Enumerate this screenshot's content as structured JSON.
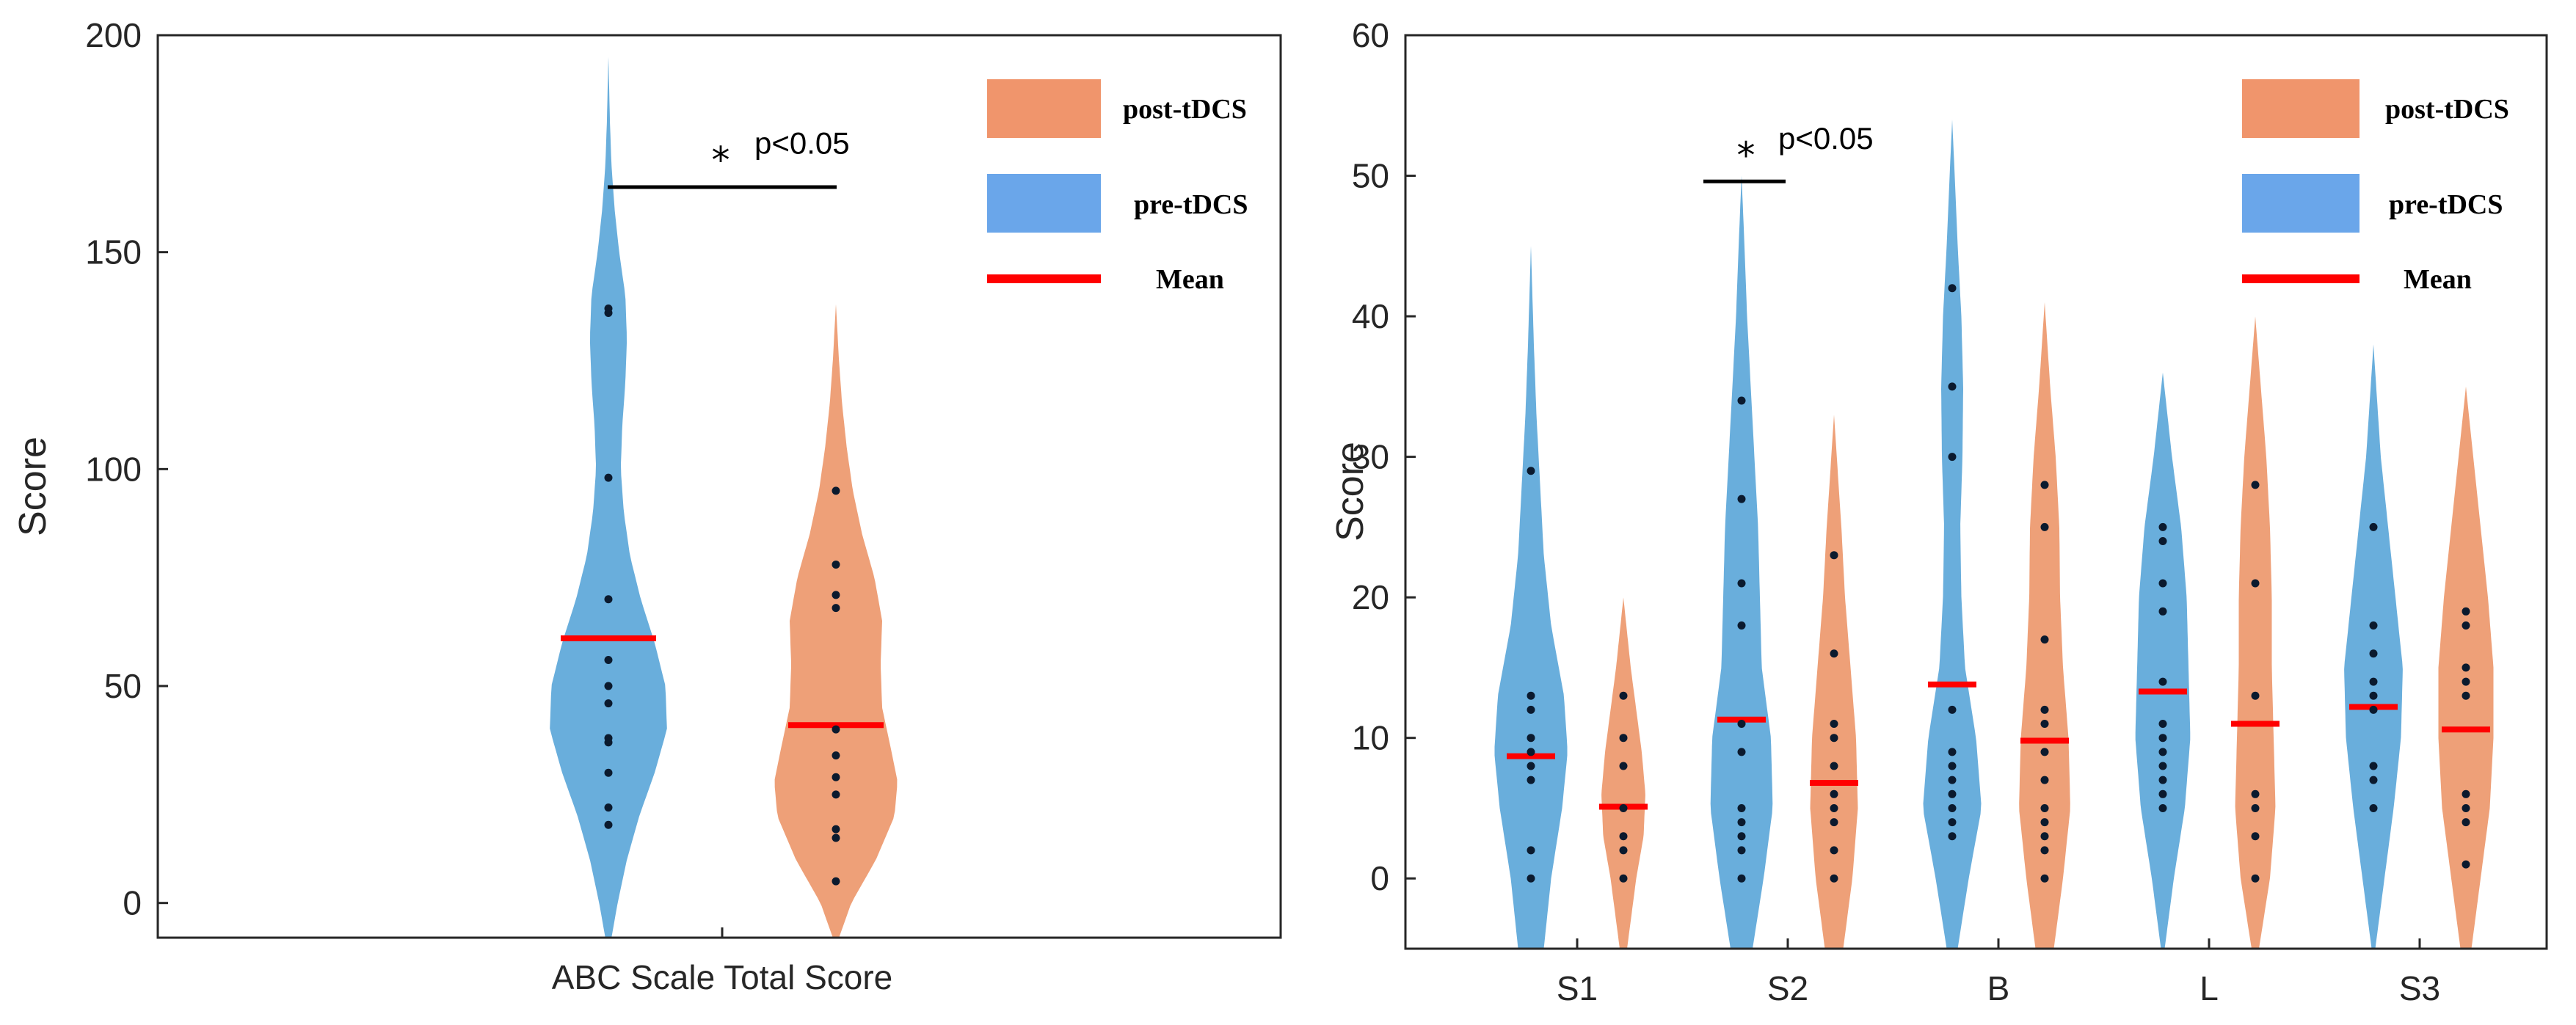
{
  "colors": {
    "pre": "#69aedc",
    "post": "#eea078",
    "pre_legend": "#6aa6ea",
    "post_legend": "#f0956c",
    "mean": "#ff0000",
    "dots": "#0b1a2e",
    "axis": "#262626"
  },
  "legend": {
    "post_label": "post-tDCS",
    "pre_label": "pre-tDCS",
    "mean_label": "Mean"
  },
  "chart_data": [
    {
      "type": "violin",
      "title": "",
      "xlabel": "",
      "ylabel": "Score",
      "ylim": [
        -8,
        200
      ],
      "yticks": [
        0,
        50,
        100,
        150,
        200
      ],
      "categories": [
        "ABC Scale Total Score"
      ],
      "annotation": {
        "text": "p<0.05",
        "star": "*",
        "bar_y": 165,
        "star_y": 173
      },
      "groups": [
        {
          "category": "ABC Scale Total Score",
          "series": "pre-tDCS",
          "mean": 61,
          "points": [
            18,
            22,
            30,
            37,
            38,
            46,
            50,
            56,
            70,
            98,
            136,
            137
          ],
          "profile": [
            [
              -8,
              0.02
            ],
            [
              0,
              0.06
            ],
            [
              10,
              0.12
            ],
            [
              20,
              0.2
            ],
            [
              30,
              0.3
            ],
            [
              40,
              0.38
            ],
            [
              50,
              0.37
            ],
            [
              60,
              0.3
            ],
            [
              70,
              0.21
            ],
            [
              80,
              0.14
            ],
            [
              90,
              0.1
            ],
            [
              100,
              0.08
            ],
            [
              110,
              0.09
            ],
            [
              120,
              0.11
            ],
            [
              130,
              0.12
            ],
            [
              140,
              0.11
            ],
            [
              150,
              0.07
            ],
            [
              160,
              0.04
            ],
            [
              170,
              0.02
            ],
            [
              180,
              0.01
            ],
            [
              195,
              0
            ]
          ]
        },
        {
          "category": "ABC Scale Total Score",
          "series": "post-tDCS",
          "mean": 41,
          "points": [
            5,
            15,
            17,
            25,
            29,
            34,
            40,
            68,
            71,
            78,
            95
          ],
          "profile": [
            [
              -8,
              0.02
            ],
            [
              0,
              0.1
            ],
            [
              10,
              0.26
            ],
            [
              20,
              0.38
            ],
            [
              28,
              0.4
            ],
            [
              35,
              0.36
            ],
            [
              45,
              0.3
            ],
            [
              55,
              0.29
            ],
            [
              65,
              0.3
            ],
            [
              75,
              0.25
            ],
            [
              85,
              0.17
            ],
            [
              95,
              0.11
            ],
            [
              105,
              0.07
            ],
            [
              115,
              0.04
            ],
            [
              125,
              0.02
            ],
            [
              138,
              0
            ]
          ]
        }
      ]
    },
    {
      "type": "violin",
      "title": "",
      "xlabel": "",
      "ylabel": "Score",
      "ylim": [
        -5,
        60
      ],
      "yticks": [
        0,
        10,
        20,
        30,
        40,
        50,
        60
      ],
      "categories": [
        "S1",
        "S2",
        "B",
        "L",
        "S3"
      ],
      "annotation": {
        "text": "p<0.05",
        "star": "*",
        "bar_y": 49.6,
        "star_y": 52
      },
      "groups": [
        {
          "category": "S1",
          "series": "pre-tDCS",
          "mean": 8.7,
          "points": [
            0,
            2,
            7,
            8,
            9,
            10,
            12,
            13,
            29
          ],
          "profile": [
            [
              -5,
              0.35
            ],
            [
              0,
              0.55
            ],
            [
              5,
              0.85
            ],
            [
              9,
              1.0
            ],
            [
              13,
              0.9
            ],
            [
              18,
              0.55
            ],
            [
              23,
              0.35
            ],
            [
              28,
              0.25
            ],
            [
              33,
              0.15
            ],
            [
              38,
              0.08
            ],
            [
              45,
              0
            ]
          ]
        },
        {
          "category": "S1",
          "series": "post-tDCS",
          "mean": 5.1,
          "points": [
            0,
            2,
            3,
            5,
            8,
            10,
            13
          ],
          "profile": [
            [
              -5,
              0.1
            ],
            [
              0,
              0.35
            ],
            [
              3,
              0.55
            ],
            [
              6,
              0.6
            ],
            [
              9,
              0.5
            ],
            [
              12,
              0.35
            ],
            [
              15,
              0.2
            ],
            [
              20,
              0
            ]
          ]
        },
        {
          "category": "S2",
          "series": "pre-tDCS",
          "mean": 11.3,
          "points": [
            0,
            2,
            3,
            4,
            5,
            9,
            11,
            18,
            21,
            27,
            34
          ],
          "profile": [
            [
              -5,
              0.3
            ],
            [
              0,
              0.6
            ],
            [
              5,
              0.85
            ],
            [
              10,
              0.8
            ],
            [
              15,
              0.55
            ],
            [
              20,
              0.5
            ],
            [
              25,
              0.45
            ],
            [
              30,
              0.35
            ],
            [
              35,
              0.25
            ],
            [
              40,
              0.15
            ],
            [
              45,
              0.08
            ],
            [
              50,
              0
            ]
          ]
        },
        {
          "category": "S2",
          "series": "post-tDCS",
          "mean": 6.8,
          "points": [
            0,
            2,
            4,
            5,
            6,
            8,
            10,
            11,
            16,
            23
          ],
          "profile": [
            [
              -5,
              0.25
            ],
            [
              0,
              0.5
            ],
            [
              5,
              0.65
            ],
            [
              10,
              0.6
            ],
            [
              15,
              0.45
            ],
            [
              20,
              0.3
            ],
            [
              25,
              0.2
            ],
            [
              33,
              0
            ]
          ]
        },
        {
          "category": "B",
          "series": "pre-tDCS",
          "mean": 13.8,
          "points": [
            3,
            4,
            5,
            6,
            7,
            8,
            9,
            12,
            30,
            35,
            42
          ],
          "profile": [
            [
              -5,
              0.15
            ],
            [
              0,
              0.45
            ],
            [
              5,
              0.8
            ],
            [
              10,
              0.65
            ],
            [
              15,
              0.35
            ],
            [
              20,
              0.25
            ],
            [
              25,
              0.22
            ],
            [
              30,
              0.28
            ],
            [
              35,
              0.3
            ],
            [
              40,
              0.25
            ],
            [
              45,
              0.15
            ],
            [
              50,
              0.07
            ],
            [
              54,
              0
            ]
          ]
        },
        {
          "category": "B",
          "series": "post-tDCS",
          "mean": 9.8,
          "points": [
            0,
            2,
            3,
            4,
            5,
            7,
            9,
            11,
            12,
            17,
            25,
            28
          ],
          "profile": [
            [
              -5,
              0.25
            ],
            [
              0,
              0.5
            ],
            [
              5,
              0.7
            ],
            [
              10,
              0.65
            ],
            [
              15,
              0.5
            ],
            [
              20,
              0.42
            ],
            [
              25,
              0.4
            ],
            [
              30,
              0.3
            ],
            [
              35,
              0.15
            ],
            [
              41,
              0
            ]
          ]
        },
        {
          "category": "L",
          "series": "pre-tDCS",
          "mean": 13.3,
          "points": [
            5,
            6,
            7,
            8,
            9,
            10,
            11,
            14,
            19,
            21,
            24,
            25
          ],
          "profile": [
            [
              -5,
              0.05
            ],
            [
              0,
              0.3
            ],
            [
              5,
              0.6
            ],
            [
              10,
              0.75
            ],
            [
              15,
              0.7
            ],
            [
              20,
              0.65
            ],
            [
              25,
              0.5
            ],
            [
              30,
              0.25
            ],
            [
              36,
              0
            ]
          ]
        },
        {
          "category": "L",
          "series": "post-tDCS",
          "mean": 11.0,
          "points": [
            0,
            3,
            5,
            6,
            13,
            21,
            28
          ],
          "profile": [
            [
              -5,
              0.1
            ],
            [
              0,
              0.4
            ],
            [
              5,
              0.55
            ],
            [
              10,
              0.5
            ],
            [
              15,
              0.45
            ],
            [
              20,
              0.45
            ],
            [
              25,
              0.4
            ],
            [
              30,
              0.3
            ],
            [
              35,
              0.15
            ],
            [
              40,
              0
            ]
          ]
        },
        {
          "category": "S3",
          "series": "pre-tDCS",
          "mean": 12.2,
          "points": [
            5,
            7,
            8,
            12,
            13,
            14,
            16,
            18,
            25
          ],
          "profile": [
            [
              -5,
              0.05
            ],
            [
              0,
              0.3
            ],
            [
              5,
              0.55
            ],
            [
              10,
              0.75
            ],
            [
              15,
              0.8
            ],
            [
              20,
              0.6
            ],
            [
              25,
              0.4
            ],
            [
              30,
              0.2
            ],
            [
              38,
              0
            ]
          ]
        },
        {
          "category": "S3",
          "series": "post-tDCS",
          "mean": 10.6,
          "points": [
            1,
            4,
            5,
            6,
            13,
            14,
            15,
            18,
            19
          ],
          "profile": [
            [
              -5,
              0.15
            ],
            [
              0,
              0.4
            ],
            [
              5,
              0.65
            ],
            [
              10,
              0.75
            ],
            [
              15,
              0.75
            ],
            [
              20,
              0.6
            ],
            [
              25,
              0.4
            ],
            [
              30,
              0.2
            ],
            [
              35,
              0
            ]
          ]
        }
      ]
    }
  ]
}
